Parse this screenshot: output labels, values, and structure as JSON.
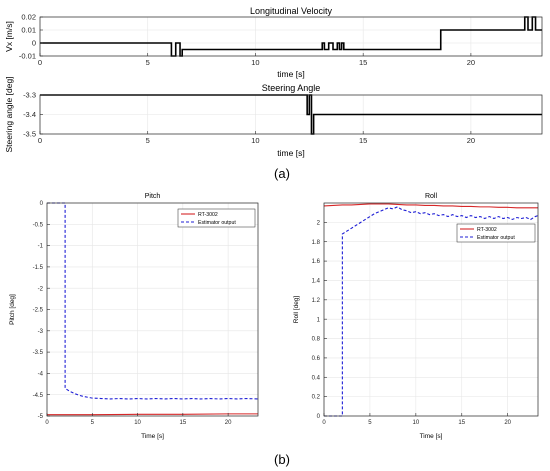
{
  "labels": {
    "panel_a": "(a)",
    "panel_b": "(b)"
  },
  "colors": {
    "black": "#000000",
    "red": "#d62728",
    "blue": "#1f1fd6",
    "grid": "#e6e6e6",
    "axes_bg": "#ffffff"
  },
  "chart_data": [
    {
      "id": "vx",
      "type": "line",
      "title": "Longitudinal Velocity",
      "xlabel": "time [s]",
      "ylabel": "Vx [m/s]",
      "xlim": [
        0,
        23.3
      ],
      "ylim": [
        -0.01,
        0.02
      ],
      "xticks": [
        0,
        5,
        10,
        15,
        20
      ],
      "yticks": [
        -0.01,
        0,
        0.01,
        0.02
      ],
      "yticklabels": [
        "-0.01",
        "0",
        "0.01",
        "0.02"
      ],
      "grid": true,
      "legend": null,
      "series": [
        {
          "style": "black-solid",
          "x": [
            0,
            6.1,
            6.1,
            6.3,
            6.3,
            6.5,
            6.5,
            6.6,
            6.6,
            13.1,
            13.1,
            13.2,
            13.2,
            13.4,
            13.4,
            13.6,
            13.6,
            13.8,
            13.8,
            13.9,
            13.9,
            14.0,
            14.0,
            14.1,
            14.1,
            18.6,
            18.6,
            22.5,
            22.5,
            22.65,
            22.65,
            22.85,
            22.85,
            23.0,
            23.0,
            23.3
          ],
          "y": [
            0,
            0,
            -0.01,
            -0.01,
            0,
            0,
            -0.01,
            -0.01,
            -0.005,
            -0.005,
            0,
            0,
            -0.005,
            -0.005,
            0,
            0,
            -0.005,
            -0.005,
            0,
            0,
            -0.005,
            -0.005,
            0,
            0,
            -0.005,
            -0.005,
            0.01,
            0.01,
            0.02,
            0.02,
            0.01,
            0.01,
            0.02,
            0.02,
            0.01,
            0.01
          ]
        }
      ]
    },
    {
      "id": "steer",
      "type": "line",
      "title": "Steering Angle",
      "xlabel": "time [s]",
      "ylabel": "Steering angle [deg]",
      "xlim": [
        0,
        23.3
      ],
      "ylim": [
        -3.5,
        -3.3
      ],
      "xticks": [
        0,
        5,
        10,
        15,
        20
      ],
      "yticks": [
        -3.5,
        -3.4,
        -3.3
      ],
      "yticklabels": [
        "-3.5",
        "-3.4",
        "-3.3"
      ],
      "grid": true,
      "legend": null,
      "series": [
        {
          "style": "black-solid",
          "x": [
            0,
            12.4,
            12.4,
            12.5,
            12.5,
            12.6,
            12.6,
            12.7,
            12.7,
            23.3
          ],
          "y": [
            -3.3,
            -3.3,
            -3.4,
            -3.4,
            -3.3,
            -3.3,
            -3.5,
            -3.5,
            -3.4,
            -3.4
          ]
        }
      ]
    },
    {
      "id": "pitch",
      "type": "line",
      "title": "Pitch",
      "xlabel": "Time [s]",
      "ylabel": "Pitch [deg]",
      "xlim": [
        0,
        23.3
      ],
      "ylim": [
        -5,
        0
      ],
      "xticks": [
        0,
        5,
        10,
        15,
        20
      ],
      "yticks": [
        -5,
        -4.5,
        -4,
        -3.5,
        -3,
        -2.5,
        -2,
        -1.5,
        -1,
        -0.5,
        0
      ],
      "yticklabels": [
        "-5",
        "-4.5",
        "-4",
        "-3.5",
        "-3",
        "-2.5",
        "-2",
        "-1.5",
        "-1",
        "-0.5",
        "0"
      ],
      "grid": true,
      "legend": {
        "position": "top-right",
        "entries": [
          "RT-3002",
          "Estimator output"
        ]
      },
      "series": [
        {
          "name": "RT-3002",
          "style": "red-solid",
          "x": [
            0,
            5,
            10,
            15,
            20,
            23.3
          ],
          "y": [
            -4.97,
            -4.97,
            -4.96,
            -4.96,
            -4.95,
            -4.95
          ]
        },
        {
          "name": "Estimator output",
          "style": "blue-dashed",
          "x": [
            0,
            2.0,
            2.0,
            2.5,
            3.0,
            3.5,
            4.0,
            4.5,
            5.0,
            6.0,
            7.0,
            8.0,
            9.0,
            10.0,
            11.0,
            12.0,
            13.0,
            14.0,
            15.0,
            16.0,
            17.0,
            18.0,
            19.0,
            20.0,
            21.0,
            22.0,
            23.3
          ],
          "y": [
            0,
            0,
            -4.35,
            -4.42,
            -4.47,
            -4.51,
            -4.54,
            -4.56,
            -4.58,
            -4.59,
            -4.6,
            -4.59,
            -4.6,
            -4.59,
            -4.6,
            -4.59,
            -4.6,
            -4.59,
            -4.6,
            -4.59,
            -4.6,
            -4.59,
            -4.6,
            -4.59,
            -4.6,
            -4.59,
            -4.6
          ]
        }
      ]
    },
    {
      "id": "roll",
      "type": "line",
      "title": "Roll",
      "xlabel": "Time [s]",
      "ylabel": "Roll [deg]",
      "xlim": [
        0,
        23.3
      ],
      "ylim": [
        0,
        2.2
      ],
      "xticks": [
        0,
        5,
        10,
        15,
        20
      ],
      "yticks": [
        0,
        0.2,
        0.4,
        0.6,
        0.8,
        1,
        1.2,
        1.4,
        1.6,
        1.8,
        2
      ],
      "yticklabels": [
        "0",
        "0.2",
        "0.4",
        "0.6",
        "0.8",
        "1",
        "1.2",
        "1.4",
        "1.6",
        "1.8",
        "2"
      ],
      "grid": true,
      "legend": {
        "position": "right",
        "entries": [
          "RT-3002",
          "Estimator output"
        ]
      },
      "series": [
        {
          "name": "RT-3002",
          "style": "red-solid",
          "x": [
            0,
            1,
            2,
            3,
            4,
            5,
            6,
            7,
            8,
            9,
            10,
            11,
            12,
            13,
            14,
            15,
            16,
            17,
            18,
            19,
            20,
            21,
            22,
            23.3
          ],
          "y": [
            2.17,
            2.175,
            2.18,
            2.18,
            2.185,
            2.19,
            2.19,
            2.19,
            2.185,
            2.18,
            2.18,
            2.175,
            2.175,
            2.17,
            2.17,
            2.165,
            2.165,
            2.16,
            2.16,
            2.155,
            2.155,
            2.15,
            2.15,
            2.15
          ]
        },
        {
          "name": "Estimator output",
          "style": "blue-dashed",
          "x": [
            0,
            2.0,
            2.0,
            2.5,
            3.0,
            3.5,
            4.0,
            4.5,
            5.0,
            5.5,
            6.0,
            6.5,
            7.0,
            7.5,
            8.0,
            8.5,
            9.0,
            9.5,
            10.0,
            10.5,
            11.0,
            11.5,
            12.0,
            12.5,
            13.0,
            13.5,
            14.0,
            14.5,
            15.0,
            15.5,
            16.0,
            16.5,
            17.0,
            17.5,
            18.0,
            18.5,
            19.0,
            19.5,
            20.0,
            20.5,
            21.0,
            21.5,
            22.0,
            22.5,
            23.0,
            23.3
          ],
          "y": [
            0,
            0,
            1.88,
            1.91,
            1.94,
            1.97,
            2.0,
            2.03,
            2.06,
            2.09,
            2.11,
            2.13,
            2.15,
            2.14,
            2.16,
            2.13,
            2.12,
            2.1,
            2.11,
            2.09,
            2.1,
            2.08,
            2.09,
            2.07,
            2.08,
            2.06,
            2.08,
            2.06,
            2.07,
            2.05,
            2.07,
            2.05,
            2.06,
            2.04,
            2.06,
            2.04,
            2.06,
            2.04,
            2.05,
            2.03,
            2.05,
            2.04,
            2.05,
            2.03,
            2.06,
            2.07
          ]
        }
      ]
    }
  ]
}
